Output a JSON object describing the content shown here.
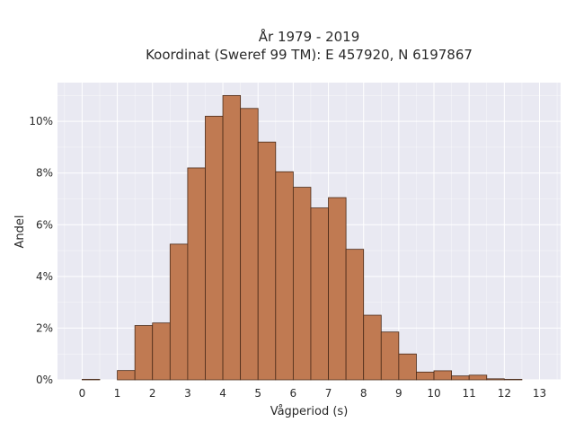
{
  "chart_data": {
    "type": "bar",
    "title": "År 1979 - 2019",
    "subtitle": "Koordinat (Sweref 99 TM): E 457920, N 6197867",
    "xlabel": "Vågperiod (s)",
    "ylabel": "Andel",
    "bin_width": 0.5,
    "bins": [
      {
        "x0": 0.0,
        "value": 0.02
      },
      {
        "x0": 1.0,
        "value": 0.36
      },
      {
        "x0": 1.5,
        "value": 2.1
      },
      {
        "x0": 2.0,
        "value": 2.2
      },
      {
        "x0": 2.5,
        "value": 5.25
      },
      {
        "x0": 3.0,
        "value": 8.2
      },
      {
        "x0": 3.5,
        "value": 10.2
      },
      {
        "x0": 4.0,
        "value": 11.0
      },
      {
        "x0": 4.5,
        "value": 10.5
      },
      {
        "x0": 5.0,
        "value": 9.2
      },
      {
        "x0": 5.5,
        "value": 8.05
      },
      {
        "x0": 6.0,
        "value": 7.45
      },
      {
        "x0": 6.5,
        "value": 6.65
      },
      {
        "x0": 7.0,
        "value": 7.05
      },
      {
        "x0": 7.5,
        "value": 5.05
      },
      {
        "x0": 8.0,
        "value": 2.5
      },
      {
        "x0": 8.5,
        "value": 1.85
      },
      {
        "x0": 9.0,
        "value": 1.0
      },
      {
        "x0": 9.5,
        "value": 0.3
      },
      {
        "x0": 10.0,
        "value": 0.35
      },
      {
        "x0": 10.5,
        "value": 0.15
      },
      {
        "x0": 11.0,
        "value": 0.18
      },
      {
        "x0": 11.5,
        "value": 0.04
      },
      {
        "x0": 12.0,
        "value": 0.02
      }
    ],
    "xlim": [
      -0.7,
      13.6
    ],
    "ylim": [
      0,
      11.5
    ],
    "xticks": [
      "0",
      "1",
      "2",
      "3",
      "4",
      "5",
      "6",
      "7",
      "8",
      "9",
      "10",
      "11",
      "12",
      "13"
    ],
    "yticks": [
      {
        "value": 0,
        "label": "0%"
      },
      {
        "value": 2,
        "label": "2%"
      },
      {
        "value": 4,
        "label": "4%"
      },
      {
        "value": 6,
        "label": "6%"
      },
      {
        "value": 8,
        "label": "8%"
      },
      {
        "value": 10,
        "label": "10%"
      }
    ],
    "grid": true,
    "colors": {
      "bar_fill": "#c07a52",
      "bar_edge": "#4a2a18",
      "plot_background": "#e9e9f2",
      "grid": "#ffffff"
    }
  }
}
